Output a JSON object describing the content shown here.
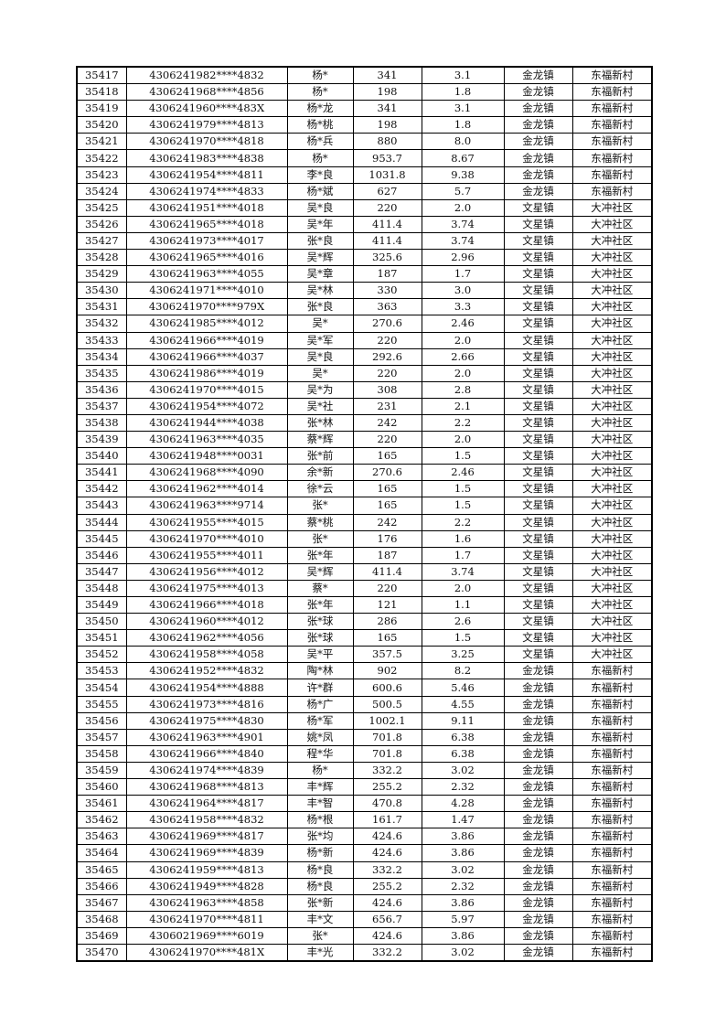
{
  "rows": [
    [
      "35417",
      "4306241982****4832",
      "杨*",
      "341",
      "3.1",
      "金龙镇",
      "东福新村"
    ],
    [
      "35418",
      "4306241968****4856",
      "杨*",
      "198",
      "1.8",
      "金龙镇",
      "东福新村"
    ],
    [
      "35419",
      "4306241960****483X",
      "杨*龙",
      "341",
      "3.1",
      "金龙镇",
      "东福新村"
    ],
    [
      "35420",
      "4306241979****4813",
      "杨*桃",
      "198",
      "1.8",
      "金龙镇",
      "东福新村"
    ],
    [
      "35421",
      "4306241970****4818",
      "杨*兵",
      "880",
      "8.0",
      "金龙镇",
      "东福新村"
    ],
    [
      "35422",
      "4306241983****4838",
      "杨*",
      "953.7",
      "8.67",
      "金龙镇",
      "东福新村"
    ],
    [
      "35423",
      "4306241954****4811",
      "李*良",
      "1031.8",
      "9.38",
      "金龙镇",
      "东福新村"
    ],
    [
      "35424",
      "4306241974****4833",
      "杨*斌",
      "627",
      "5.7",
      "金龙镇",
      "东福新村"
    ],
    [
      "35425",
      "4306241951****4018",
      "吴*良",
      "220",
      "2.0",
      "文星镇",
      "大冲社区"
    ],
    [
      "35426",
      "4306241965****4018",
      "吴*年",
      "411.4",
      "3.74",
      "文星镇",
      "大冲社区"
    ],
    [
      "35427",
      "4306241973****4017",
      "张*良",
      "411.4",
      "3.74",
      "文星镇",
      "大冲社区"
    ],
    [
      "35428",
      "4306241965****4016",
      "吴*辉",
      "325.6",
      "2.96",
      "文星镇",
      "大冲社区"
    ],
    [
      "35429",
      "4306241963****4055",
      "吴*章",
      "187",
      "1.7",
      "文星镇",
      "大冲社区"
    ],
    [
      "35430",
      "4306241971****4010",
      "吴*林",
      "330",
      "3.0",
      "文星镇",
      "大冲社区"
    ],
    [
      "35431",
      "4306241970****979X",
      "张*良",
      "363",
      "3.3",
      "文星镇",
      "大冲社区"
    ],
    [
      "35432",
      "4306241985****4012",
      "吴*",
      "270.6",
      "2.46",
      "文星镇",
      "大冲社区"
    ],
    [
      "35433",
      "4306241966****4019",
      "吴*军",
      "220",
      "2.0",
      "文星镇",
      "大冲社区"
    ],
    [
      "35434",
      "4306241966****4037",
      "吴*良",
      "292.6",
      "2.66",
      "文星镇",
      "大冲社区"
    ],
    [
      "35435",
      "4306241986****4019",
      "吴*",
      "220",
      "2.0",
      "文星镇",
      "大冲社区"
    ],
    [
      "35436",
      "4306241970****4015",
      "吴*为",
      "308",
      "2.8",
      "文星镇",
      "大冲社区"
    ],
    [
      "35437",
      "4306241954****4072",
      "吴*社",
      "231",
      "2.1",
      "文星镇",
      "大冲社区"
    ],
    [
      "35438",
      "4306241944****4038",
      "张*林",
      "242",
      "2.2",
      "文星镇",
      "大冲社区"
    ],
    [
      "35439",
      "4306241963****4035",
      "蔡*辉",
      "220",
      "2.0",
      "文星镇",
      "大冲社区"
    ],
    [
      "35440",
      "4306241948****0031",
      "张*前",
      "165",
      "1.5",
      "文星镇",
      "大冲社区"
    ],
    [
      "35441",
      "4306241968****4090",
      "余*新",
      "270.6",
      "2.46",
      "文星镇",
      "大冲社区"
    ],
    [
      "35442",
      "4306241962****4014",
      "徐*云",
      "165",
      "1.5",
      "文星镇",
      "大冲社区"
    ],
    [
      "35443",
      "4306241963****9714",
      "张*",
      "165",
      "1.5",
      "文星镇",
      "大冲社区"
    ],
    [
      "35444",
      "4306241955****4015",
      "蔡*桃",
      "242",
      "2.2",
      "文星镇",
      "大冲社区"
    ],
    [
      "35445",
      "4306241970****4010",
      "张*",
      "176",
      "1.6",
      "文星镇",
      "大冲社区"
    ],
    [
      "35446",
      "4306241955****4011",
      "张*年",
      "187",
      "1.7",
      "文星镇",
      "大冲社区"
    ],
    [
      "35447",
      "4306241956****4012",
      "吴*辉",
      "411.4",
      "3.74",
      "文星镇",
      "大冲社区"
    ],
    [
      "35448",
      "4306241975****4013",
      "蔡*",
      "220",
      "2.0",
      "文星镇",
      "大冲社区"
    ],
    [
      "35449",
      "4306241966****4018",
      "张*年",
      "121",
      "1.1",
      "文星镇",
      "大冲社区"
    ],
    [
      "35450",
      "4306241960****4012",
      "张*球",
      "286",
      "2.6",
      "文星镇",
      "大冲社区"
    ],
    [
      "35451",
      "4306241962****4056",
      "张*球",
      "165",
      "1.5",
      "文星镇",
      "大冲社区"
    ],
    [
      "35452",
      "4306241958****4058",
      "吴*平",
      "357.5",
      "3.25",
      "文星镇",
      "大冲社区"
    ],
    [
      "35453",
      "4306241952****4832",
      "陶*林",
      "902",
      "8.2",
      "金龙镇",
      "东福新村"
    ],
    [
      "35454",
      "4306241954****4888",
      "许*群",
      "600.6",
      "5.46",
      "金龙镇",
      "东福新村"
    ],
    [
      "35455",
      "4306241973****4816",
      "杨*广",
      "500.5",
      "4.55",
      "金龙镇",
      "东福新村"
    ],
    [
      "35456",
      "4306241975****4830",
      "杨*军",
      "1002.1",
      "9.11",
      "金龙镇",
      "东福新村"
    ],
    [
      "35457",
      "4306241963****4901",
      "姚*凤",
      "701.8",
      "6.38",
      "金龙镇",
      "东福新村"
    ],
    [
      "35458",
      "4306241966****4840",
      "程*华",
      "701.8",
      "6.38",
      "金龙镇",
      "东福新村"
    ],
    [
      "35459",
      "4306241974****4839",
      "杨*",
      "332.2",
      "3.02",
      "金龙镇",
      "东福新村"
    ],
    [
      "35460",
      "4306241968****4813",
      "丰*辉",
      "255.2",
      "2.32",
      "金龙镇",
      "东福新村"
    ],
    [
      "35461",
      "4306241964****4817",
      "丰*智",
      "470.8",
      "4.28",
      "金龙镇",
      "东福新村"
    ],
    [
      "35462",
      "4306241958****4832",
      "杨*根",
      "161.7",
      "1.47",
      "金龙镇",
      "东福新村"
    ],
    [
      "35463",
      "4306241969****4817",
      "张*均",
      "424.6",
      "3.86",
      "金龙镇",
      "东福新村"
    ],
    [
      "35464",
      "4306241969****4839",
      "杨*新",
      "424.6",
      "3.86",
      "金龙镇",
      "东福新村"
    ],
    [
      "35465",
      "4306241959****4813",
      "杨*良",
      "332.2",
      "3.02",
      "金龙镇",
      "东福新村"
    ],
    [
      "35466",
      "4306241949****4828",
      "杨*良",
      "255.2",
      "2.32",
      "金龙镇",
      "东福新村"
    ],
    [
      "35467",
      "4306241963****4858",
      "张*新",
      "424.6",
      "3.86",
      "金龙镇",
      "东福新村"
    ],
    [
      "35468",
      "4306241970****4811",
      "丰*文",
      "656.7",
      "5.97",
      "金龙镇",
      "东福新村"
    ],
    [
      "35469",
      "4306021969****6019",
      "张*",
      "424.6",
      "3.86",
      "金龙镇",
      "东福新村"
    ],
    [
      "35470",
      "4306241970****481X",
      "丰*光",
      "332.2",
      "3.02",
      "金龙镇",
      "东福新村"
    ]
  ]
}
